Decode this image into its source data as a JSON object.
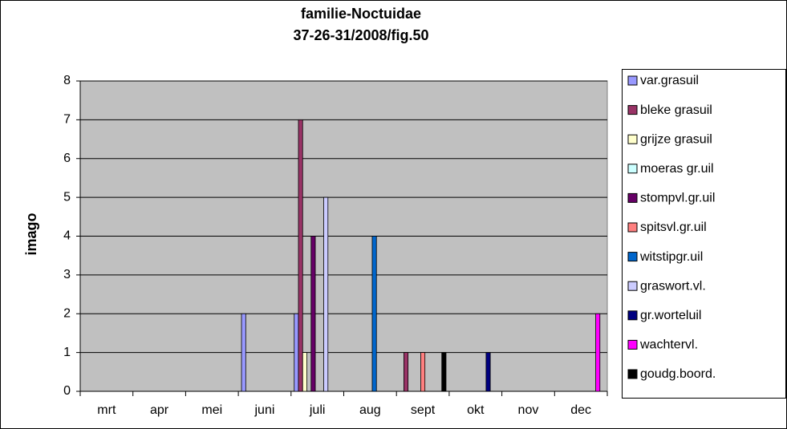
{
  "chart_data": {
    "type": "bar",
    "title": "familie-Noctuidae",
    "subtitle": "37-26-31/2008/fig.50",
    "y_label": "imago",
    "categories": [
      "mrt",
      "apr",
      "mei",
      "juni",
      "juli",
      "aug",
      "sept",
      "okt",
      "nov",
      "dec"
    ],
    "series": [
      {
        "name": "var.grasuil",
        "color": "#9999ff",
        "values": [
          0,
          0,
          0,
          2,
          2,
          0,
          0,
          0,
          0,
          0
        ]
      },
      {
        "name": "bleke grasuil",
        "color": "#993366",
        "values": [
          0,
          0,
          0,
          0,
          7,
          0,
          1,
          0,
          0,
          0
        ]
      },
      {
        "name": "grijze grasuil",
        "color": "#ffffcc",
        "values": [
          0,
          0,
          0,
          0,
          1,
          0,
          0,
          0,
          0,
          0
        ]
      },
      {
        "name": "moeras gr.uil",
        "color": "#ccffff",
        "values": [
          0,
          0,
          0,
          0,
          0,
          0,
          0,
          0,
          0,
          0
        ]
      },
      {
        "name": "stompvl.gr.uil",
        "color": "#660066",
        "values": [
          0,
          0,
          0,
          0,
          4,
          0,
          0,
          0,
          0,
          0
        ]
      },
      {
        "name": "spitsvl.gr.uil",
        "color": "#ff8080",
        "values": [
          0,
          0,
          0,
          0,
          0,
          0,
          1,
          0,
          0,
          0
        ]
      },
      {
        "name": "witstipgr.uil",
        "color": "#0066cc",
        "values": [
          0,
          0,
          0,
          0,
          0,
          4,
          0,
          0,
          0,
          0
        ]
      },
      {
        "name": "graswort.vl.",
        "color": "#ccccff",
        "values": [
          0,
          0,
          0,
          0,
          5,
          0,
          0,
          0,
          0,
          0
        ]
      },
      {
        "name": "gr.worteluil",
        "color": "#000080",
        "values": [
          0,
          0,
          0,
          0,
          0,
          0,
          0,
          1,
          0,
          0
        ]
      },
      {
        "name": "wachtervl.",
        "color": "#ff00ff",
        "values": [
          0,
          0,
          0,
          0,
          0,
          0,
          0,
          0,
          0,
          2
        ]
      },
      {
        "name": "goudg.boord.",
        "color": "#000000",
        "values": [
          0,
          0,
          0,
          0,
          0,
          0,
          1,
          0,
          0,
          0
        ]
      }
    ],
    "ylim": [
      0,
      8
    ],
    "yticks": [
      0,
      1,
      2,
      3,
      4,
      5,
      6,
      7,
      8
    ],
    "grid": true,
    "legend": "right",
    "plot_background": "#c0c0c0"
  }
}
